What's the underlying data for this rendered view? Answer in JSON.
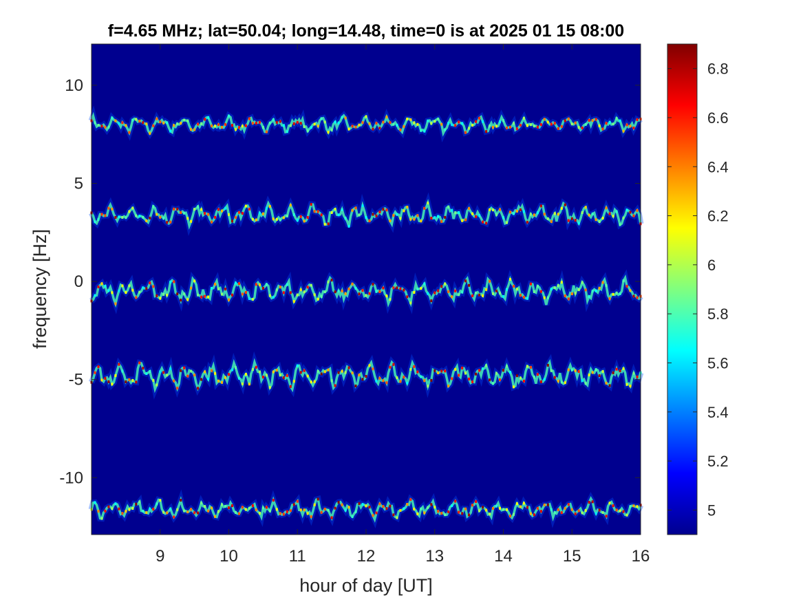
{
  "chart_data": {
    "type": "heatmap",
    "title": "f=4.65 MHz;  lat=50.04; long=14.48, time=0 is at 2025 01 15 08:00",
    "xlabel": "hour of day [UT]",
    "ylabel": "frequency [Hz]",
    "xlim": [
      8.0,
      16.0
    ],
    "ylim": [
      -12.9,
      12.1
    ],
    "x_ticks": [
      9,
      10,
      11,
      12,
      13,
      14,
      15,
      16
    ],
    "x_tick_labels": [
      "9",
      "10",
      "11",
      "12",
      "13",
      "14",
      "15",
      "16"
    ],
    "y_ticks": [
      10,
      5,
      0,
      -5,
      -10
    ],
    "y_tick_labels": [
      "10",
      "5",
      "0",
      "-5",
      "-10"
    ],
    "colorbar": {
      "colormap": "jet",
      "clim": [
        4.9,
        6.9
      ],
      "ticks": [
        6.8,
        6.6,
        6.4,
        6.2,
        6.0,
        5.8,
        5.6,
        5.4,
        5.2,
        5.0
      ],
      "tick_labels": [
        "6.8",
        "6.6",
        "6.4",
        "6.2",
        "6",
        "5.8",
        "5.6",
        "5.4",
        "5.2",
        "5"
      ]
    },
    "background_value": 4.9,
    "traces": [
      {
        "center_hz": 8.0,
        "amplitude_hz": 0.35,
        "intensity": 6.5
      },
      {
        "center_hz": 3.4,
        "amplitude_hz": 0.45,
        "intensity": 6.6
      },
      {
        "center_hz": -0.5,
        "amplitude_hz": 0.5,
        "intensity": 6.6
      },
      {
        "center_hz": -4.8,
        "amplitude_hz": 0.55,
        "intensity": 6.7
      },
      {
        "center_hz": -11.6,
        "amplitude_hz": 0.4,
        "intensity": 6.6
      }
    ],
    "colors": {
      "background": "#00008f",
      "axis": "#262626"
    }
  }
}
